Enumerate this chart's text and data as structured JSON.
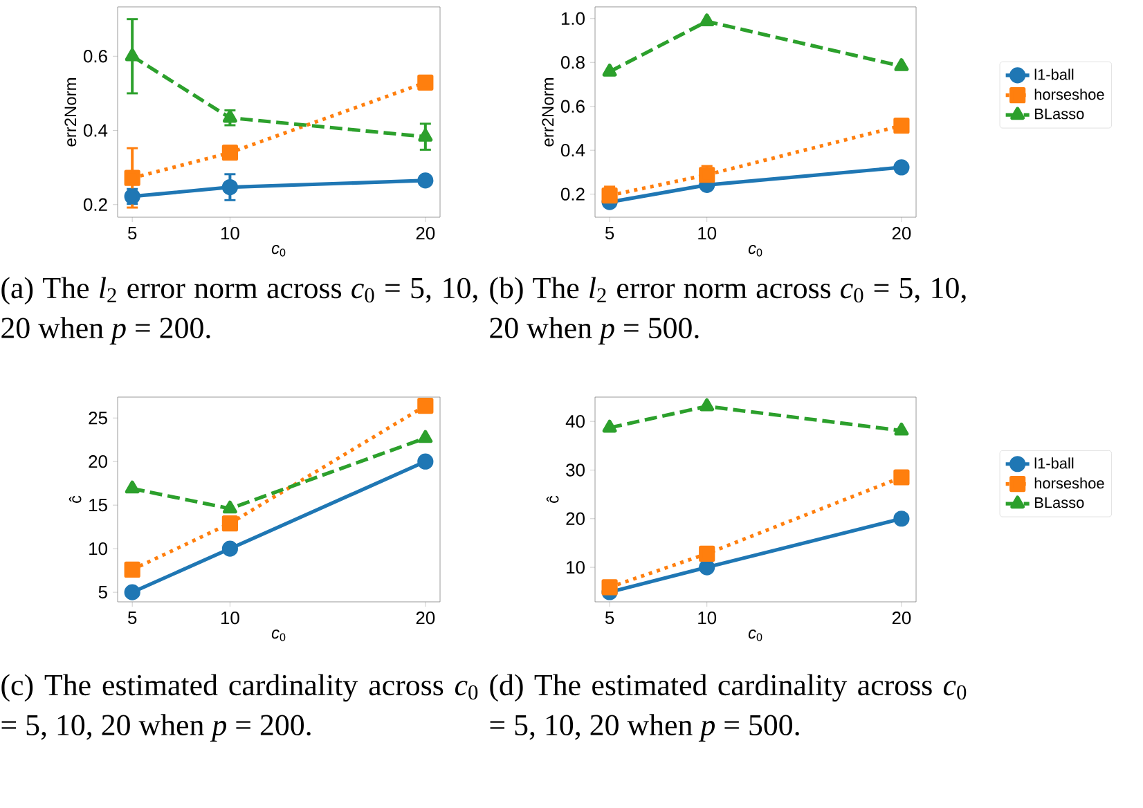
{
  "chart_data": [
    {
      "type": "line",
      "xlabel": "*c*$_{0}$",
      "ylabel": "err2Norm",
      "x": [
        5,
        10,
        20
      ],
      "xlim": [
        4.25,
        20.75
      ],
      "xticks": [
        5,
        10,
        20
      ],
      "ylim": [
        0.166,
        0.733
      ],
      "yticks": [
        0.2,
        0.4,
        0.6
      ],
      "series": [
        {
          "color": "#1f77b4",
          "marker": "circle",
          "line_style": "solid",
          "values": [
            0.222,
            0.247,
            0.265
          ],
          "errors": [
            0.02,
            0.035,
            null
          ]
        },
        {
          "color": "#ff7f0e",
          "marker": "square",
          "line_style": "dotted",
          "values": [
            0.272,
            0.34,
            0.529
          ],
          "errors": [
            0.08,
            null,
            null
          ]
        },
        {
          "color": "#2ca02c",
          "marker": "triangle",
          "line_style": "dashed",
          "values": [
            0.6,
            0.434,
            0.383
          ],
          "errors": [
            0.1,
            0.02,
            0.035
          ]
        }
      ],
      "annotations": [
        "(a) The *l*$_{2}$ error norm across *c*$_{0}$ = 5, 10, 20 when *p* = 200."
      ]
    },
    {
      "type": "line",
      "xlabel": "*c*$_{0}$",
      "ylabel": "err2Norm",
      "x": [
        5,
        10,
        20
      ],
      "xlim": [
        4.25,
        20.75
      ],
      "xticks": [
        5,
        10,
        20
      ],
      "ylim": [
        0.095,
        1.053
      ],
      "yticks": [
        0.2,
        0.4,
        0.6,
        0.8,
        {
          "value": 1,
          "label": "1.0"
        }
      ],
      "legend": "right",
      "series": [
        {
          "name": "l1-ball",
          "color": "#1f77b4",
          "marker": "circle",
          "line_style": "solid",
          "values": [
            0.164,
            0.242,
            0.322
          ]
        },
        {
          "name": "horseshoe",
          "color": "#ff7f0e",
          "marker": "square",
          "line_style": "dotted",
          "values": [
            0.194,
            0.288,
            0.512
          ],
          "errors": [
            0.04,
            0.04,
            null
          ]
        },
        {
          "name": "BLasso",
          "color": "#2ca02c",
          "marker": "triangle",
          "line_style": "dashed",
          "values": [
            0.758,
            0.987,
            0.783
          ]
        }
      ],
      "annotations": [
        "(b) The *l*$_{2}$ error norm across *c*$_{0}$ = 5, 10, 20 when *p* = 500."
      ]
    },
    {
      "type": "line",
      "xlabel": "*c*$_{0}$",
      "ylabel": "ĉ",
      "x": [
        5,
        10,
        20
      ],
      "xlim": [
        4.25,
        20.75
      ],
      "xticks": [
        5,
        10,
        20
      ],
      "ylim": [
        3.9,
        27.4
      ],
      "yticks": [
        5,
        10,
        15,
        20,
        25
      ],
      "series": [
        {
          "color": "#1f77b4",
          "marker": "circle",
          "line_style": "solid",
          "values": [
            5,
            10,
            20
          ]
        },
        {
          "color": "#ff7f0e",
          "marker": "square",
          "line_style": "dotted",
          "values": [
            7.6,
            12.9,
            26.4
          ]
        },
        {
          "color": "#2ca02c",
          "marker": "triangle",
          "line_style": "dashed",
          "values": [
            16.9,
            14.6,
            22.7
          ]
        }
      ],
      "annotations": [
        "(c) The estimated cardinality across *c*$_{0}$ = 5, 10, 20 when *p* = 200."
      ]
    },
    {
      "type": "line",
      "xlabel": "*c*$_{0}$",
      "ylabel": "ĉ",
      "x": [
        5,
        10,
        20
      ],
      "xlim": [
        4.25,
        20.75
      ],
      "xticks": [
        5,
        10,
        20
      ],
      "ylim": [
        2.9,
        45
      ],
      "yticks": [
        10,
        20,
        30,
        40
      ],
      "legend": "right",
      "series": [
        {
          "name": "l1-ball",
          "color": "#1f77b4",
          "marker": "circle",
          "line_style": "solid",
          "values": [
            4.9,
            10,
            20
          ]
        },
        {
          "name": "horseshoe",
          "color": "#ff7f0e",
          "marker": "square",
          "line_style": "dotted",
          "values": [
            5.9,
            12.8,
            28.5
          ]
        },
        {
          "name": "BLasso",
          "color": "#2ca02c",
          "marker": "triangle",
          "line_style": "dashed",
          "values": [
            38.7,
            43.1,
            38.1
          ]
        }
      ],
      "annotations": [
        "(d) The estimated cardinality across *c*$_{0}$ = 5, 10, 20 when *p* = 500."
      ]
    }
  ]
}
